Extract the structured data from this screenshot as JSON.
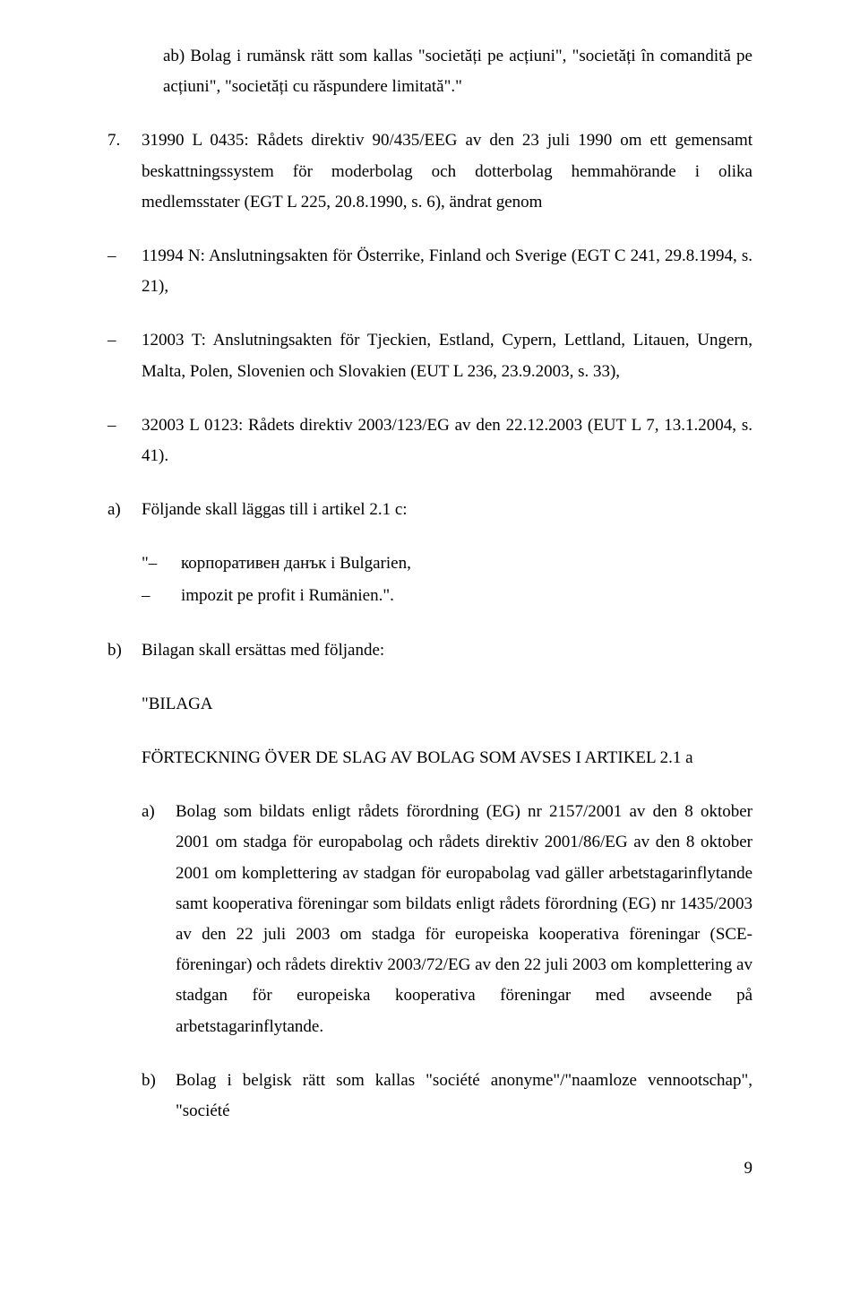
{
  "p1": "ab) Bolag i rumänsk rätt som kallas \"societăți pe acțiuni\", \"societăți în comandită pe acțiuni\", \"societăți cu răspundere limitată\".\"",
  "n7_marker": "7.",
  "n7_body": "31990 L 0435: Rådets direktiv 90/435/EEG av den 23 juli 1990 om ett gemensamt beskattningssystem för moderbolag och dotterbolag hemmahörande i olika medlemsstater (EGT L 225, 20.8.1990, s. 6), ändrat genom",
  "d1_body": "11994 N: Anslutningsakten för Österrike, Finland och Sverige (EGT C 241, 29.8.1994, s. 21),",
  "d2_body": "12003 T: Anslutningsakten för Tjeckien, Estland, Cypern, Lettland, Litauen, Ungern, Malta, Polen, Slovenien och Slovakien (EUT L 236, 23.9.2003, s. 33),",
  "d3_body": "32003 L 0123: Rådets direktiv 2003/123/EG av den 22.12.2003 (EUT L 7, 13.1.2004, s. 41).",
  "a_marker": "a)",
  "a_body": "Följande skall läggas till i artikel 2.1 c:",
  "a_q1_marker": "\"–",
  "a_q1_body": "корпоративен данък i Bulgarien,",
  "a_q2_marker": "–",
  "a_q2_body": "impozit pe profit i Rumänien.\".",
  "b_marker": "b)",
  "b_body": "Bilagan skall ersättas med följande:",
  "bilaga": "\"BILAGA",
  "forteckning": "FÖRTECKNING ÖVER DE SLAG AV BOLAG SOM AVSES I ARTIKEL 2.1 a",
  "sa_marker": "a)",
  "sa_body": "Bolag som bildats enligt rådets förordning (EG) nr 2157/2001 av den 8 oktober 2001 om stadga för europabolag och rådets direktiv 2001/86/EG av den 8 oktober 2001 om komplettering av stadgan för europabolag vad gäller arbetstagarinflytande samt kooperativa föreningar som bildats enligt rådets förordning (EG) nr 1435/2003 av den 22 juli 2003 om stadga för europeiska kooperativa föreningar (SCE-föreningar) och rådets direktiv 2003/72/EG av den 22 juli 2003 om komplettering av stadgan för europeiska kooperativa föreningar med avseende på arbetstagarinflytande.",
  "sb_marker": "b)",
  "sb_body": "Bolag i belgisk rätt som kallas \"société anonyme\"/\"naamloze vennootschap\", \"société",
  "page_number": "9",
  "dash": "–"
}
